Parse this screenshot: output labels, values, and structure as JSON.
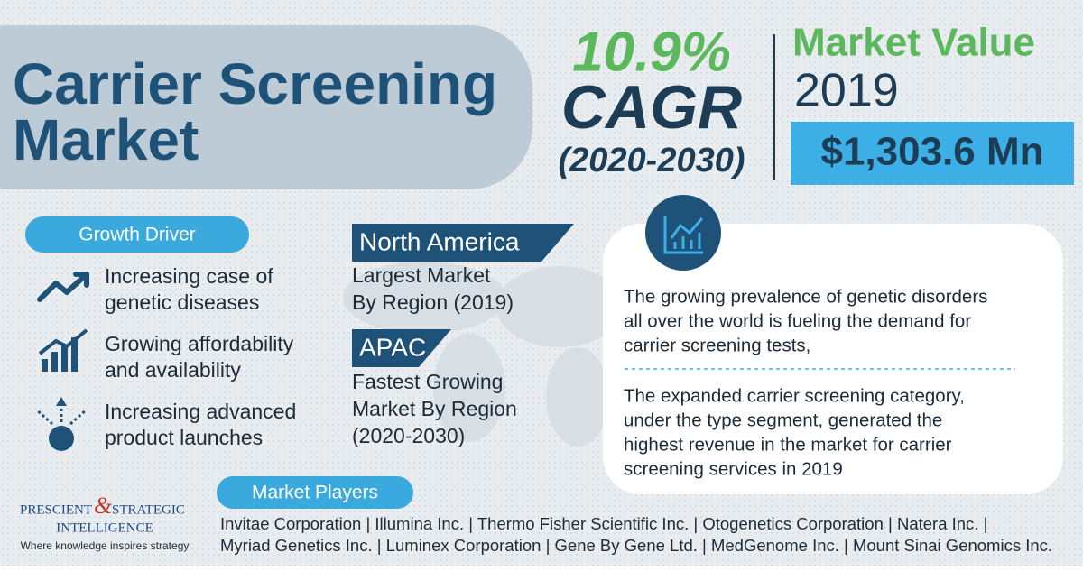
{
  "title": {
    "line1": "Carrier Screening",
    "line2": "Market"
  },
  "cagr": {
    "value": "10.9%",
    "label": "CAGR",
    "period": "(2020-2030)"
  },
  "market_value": {
    "label": "Market Value",
    "year": "2019",
    "amount": "$1,303.6 Mn"
  },
  "growth_driver": {
    "heading": "Growth Driver",
    "items": [
      [
        "Increasing case of",
        "genetic diseases"
      ],
      [
        "Growing affordability",
        "and availability"
      ],
      [
        "Increasing advanced",
        "product launches"
      ]
    ]
  },
  "regions": [
    {
      "name": "North America",
      "lines": [
        "Largest Market",
        "By Region (2019)"
      ]
    },
    {
      "name": "APAC",
      "lines": [
        "Fastest Growing",
        "Market By Region",
        "(2020-2030)"
      ]
    }
  ],
  "insights": [
    [
      "The growing prevalence of genetic disorders",
      "all over the world is fueling the demand for",
      "carrier screening tests,"
    ],
    [
      "The expanded carrier screening category,",
      "under the type segment, generated the",
      "highest revenue in the market for carrier",
      "screening services in 2019"
    ]
  ],
  "market_players": {
    "heading": "Market Players",
    "lines": [
      "Invitae Corporation | Illumina Inc. | Thermo Fisher Scientific Inc. | Otogenetics Corporation | Natera Inc. |",
      "Myriad Genetics Inc. | Luminex Corporation | Gene By Gene Ltd. | MedGenome Inc. | Mount Sinai Genomics Inc."
    ]
  },
  "logo": {
    "name1": "PRESCIENT",
    "amp": "&",
    "name2": "STRATEGIC",
    "name3": "INTELLIGENCE",
    "tagline": "Where knowledge inspires strategy"
  }
}
